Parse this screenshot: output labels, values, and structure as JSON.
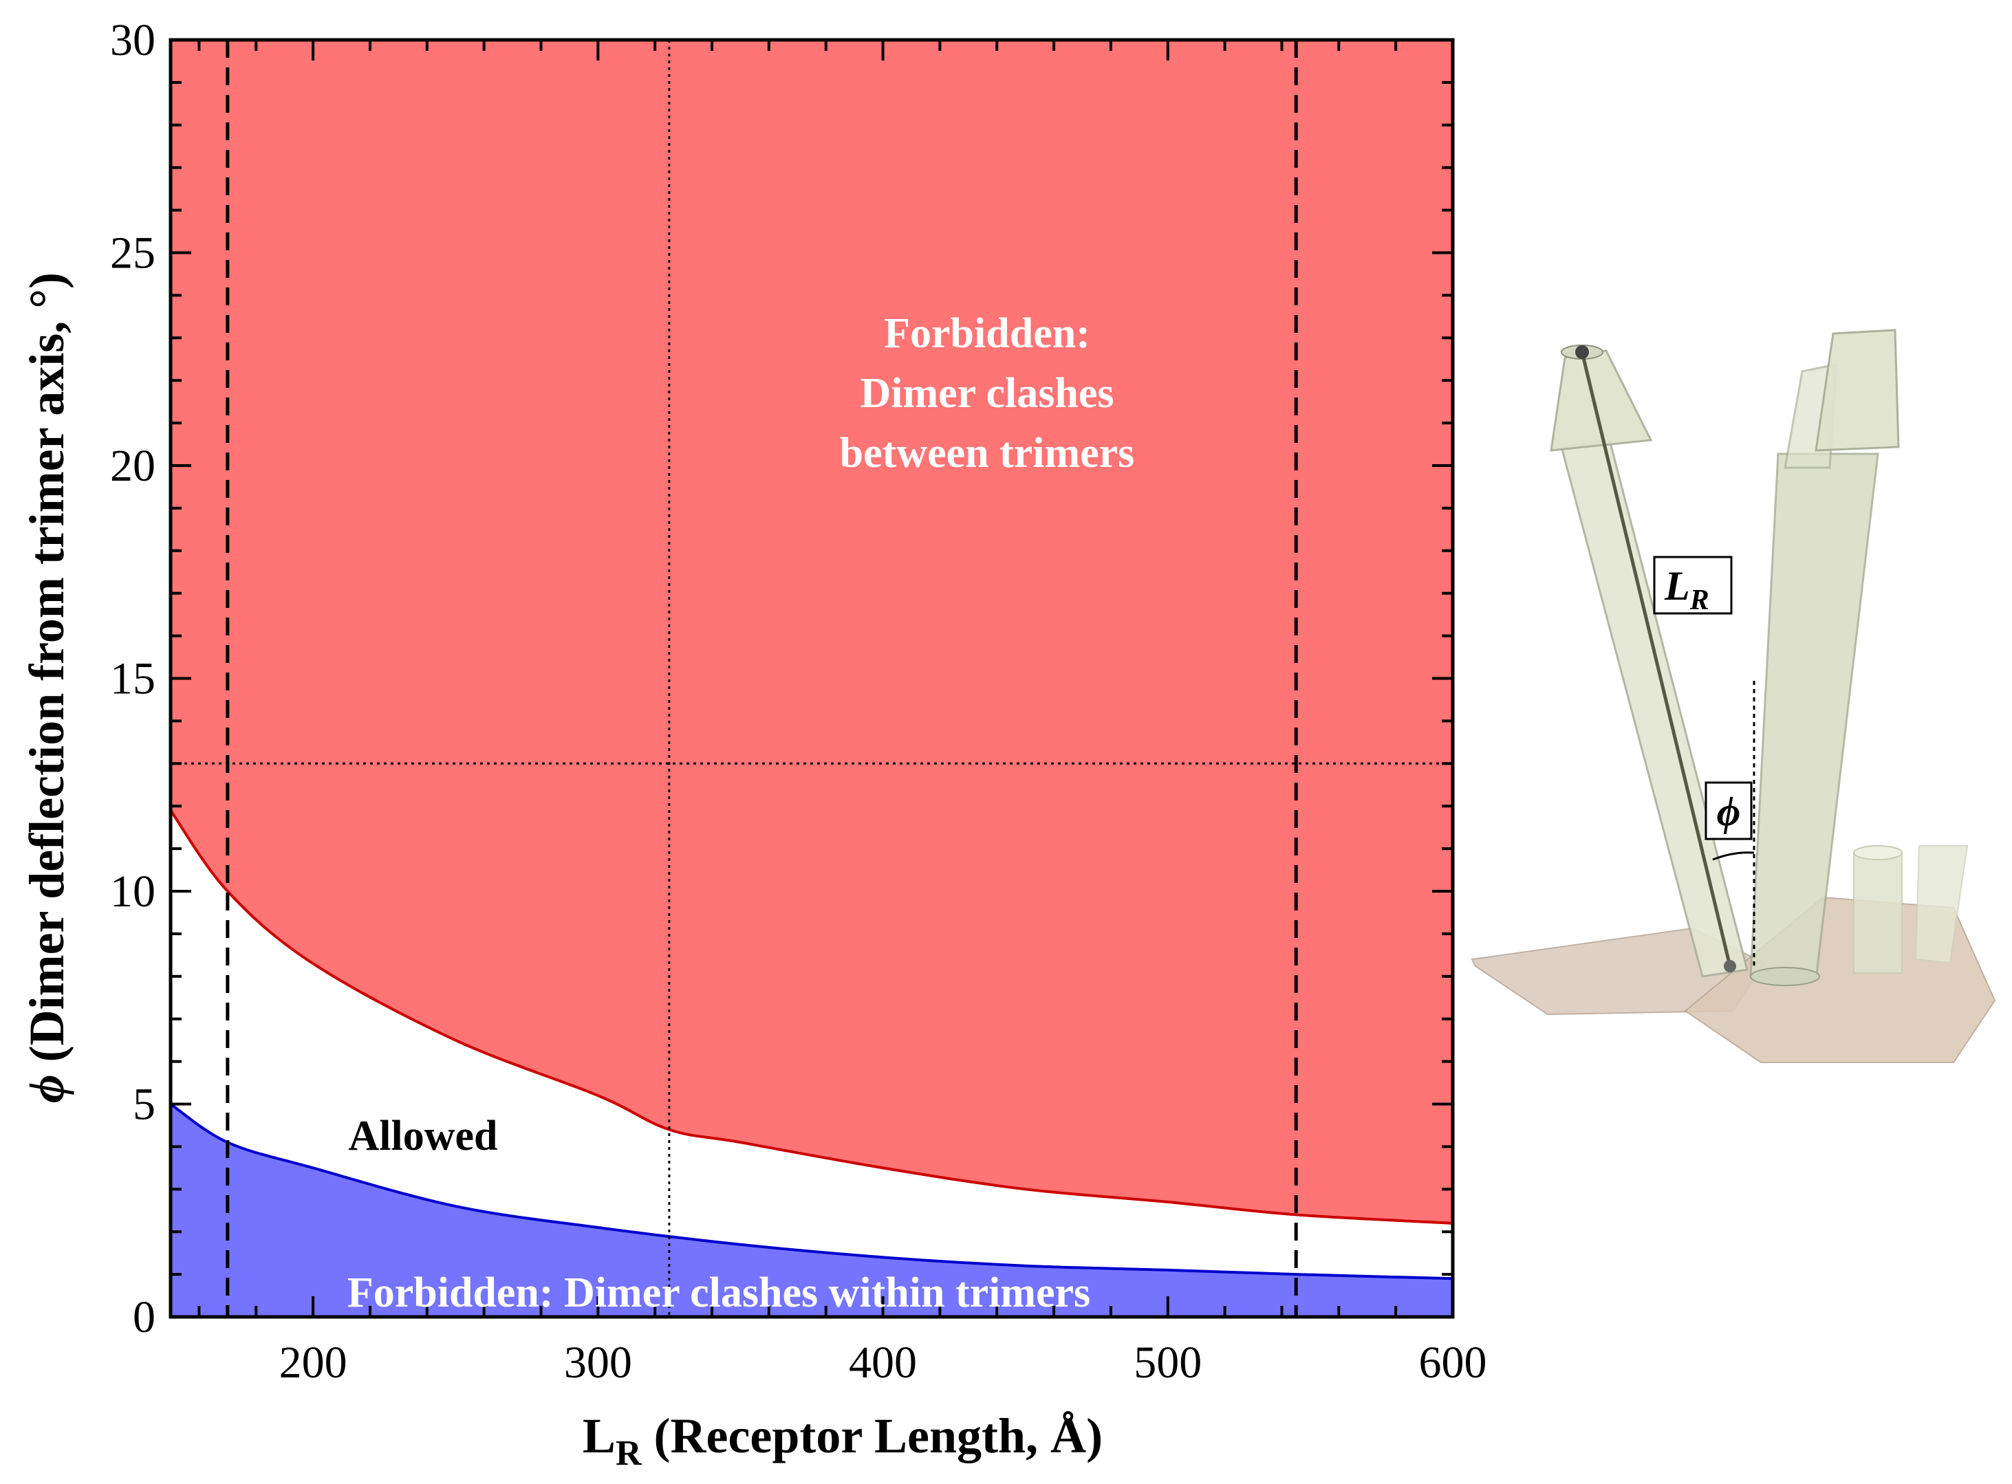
{
  "chart_data": {
    "type": "area",
    "xlabel": "L",
    "xlabel_sub": "R",
    "xlabel_rest": " (Receptor Length, Å)",
    "ylabel_symbol": "ϕ",
    "ylabel_rest": " (Dimer deflection from trimer axis, °)",
    "xlim": [
      150,
      600
    ],
    "ylim": [
      0,
      30
    ],
    "xticks": [
      "200",
      "300",
      "400",
      "500",
      "600"
    ],
    "yticks": [
      "0",
      "5",
      "10",
      "15",
      "20",
      "25",
      "30"
    ],
    "grid": false,
    "series": [
      {
        "name": "Upper boundary (clash between trimers)",
        "x": [
          150,
          170,
          200,
          250,
          300,
          325,
          350,
          400,
          450,
          500,
          545,
          600
        ],
        "y": [
          11.9,
          10.0,
          8.3,
          6.5,
          5.2,
          4.4,
          4.1,
          3.5,
          3.0,
          2.7,
          2.4,
          2.2
        ],
        "color": "#cc0000"
      },
      {
        "name": "Lower boundary (clash within trimers)",
        "x": [
          150,
          170,
          200,
          250,
          300,
          350,
          400,
          450,
          500,
          545,
          600
        ],
        "y": [
          5.0,
          4.1,
          3.5,
          2.6,
          2.1,
          1.7,
          1.4,
          1.2,
          1.1,
          1.0,
          0.9
        ],
        "color": "#0000cc"
      }
    ],
    "reference_lines": {
      "dashed_x": [
        170,
        545
      ],
      "dotted_x": [
        325
      ],
      "dotted_y": [
        13
      ]
    },
    "regions": {
      "upper_label": [
        "Forbidden:",
        "Dimer clashes",
        "between trimers"
      ],
      "middle_label": "Allowed",
      "lower_label": "Forbidden: Dimer clashes within trimers"
    },
    "colors": {
      "upper_fill": "#ff7474",
      "lower_fill": "#7474ff",
      "upper_line": "#cc0000",
      "lower_line": "#0000cc"
    }
  },
  "diagram": {
    "label_length": "L",
    "label_length_sub": "R",
    "label_angle": "ϕ"
  }
}
